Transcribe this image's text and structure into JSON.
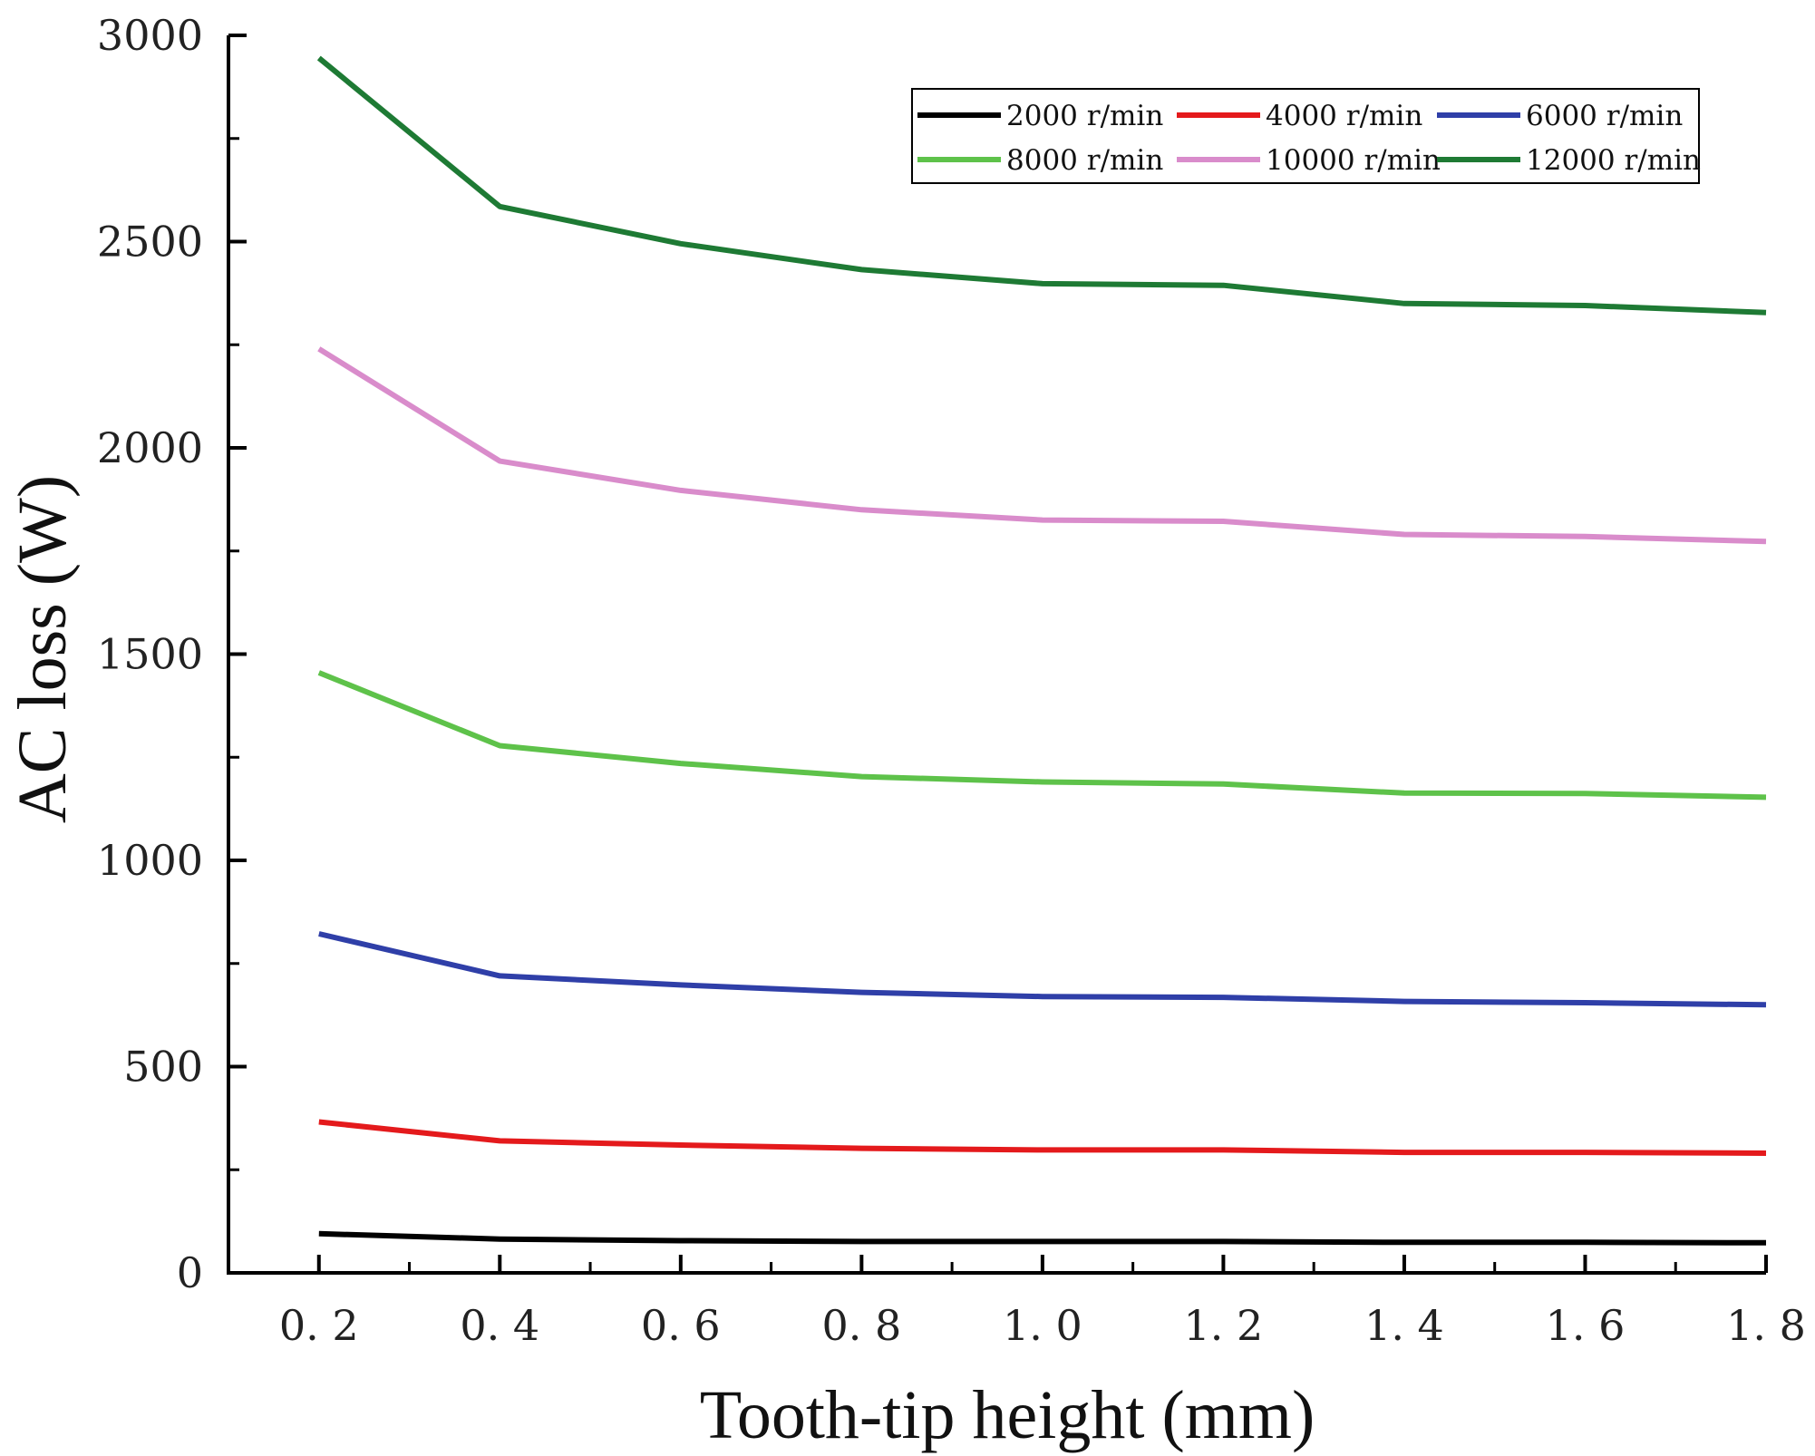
{
  "chart_data": {
    "type": "line",
    "title": "",
    "xlabel": "Tooth-tip height (mm)",
    "ylabel": "AC loss (W)",
    "x": [
      0.2,
      0.4,
      0.6,
      0.8,
      1.0,
      1.2,
      1.4,
      1.6,
      1.8
    ],
    "x_tick_labels": [
      "0. 2",
      "0. 4",
      "0. 6",
      "0. 8",
      "1. 0",
      "1. 2",
      "1. 4",
      "1. 6",
      "1. 8"
    ],
    "xlim": [
      0.1,
      1.8
    ],
    "ylim": [
      0,
      3000
    ],
    "y_ticks": [
      0,
      500,
      1000,
      1500,
      2000,
      2500,
      3000
    ],
    "y_tick_labels": [
      "0",
      "500",
      "1000",
      "1500",
      "2000",
      "2500",
      "3000"
    ],
    "grid": false,
    "legend_position": "top-right",
    "series": [
      {
        "name": "2000 r/min",
        "color": "#000000",
        "values": [
          95,
          82,
          78,
          76,
          76,
          76,
          74,
          74,
          73
        ]
      },
      {
        "name": "4000 r/min",
        "color": "#e41a1c",
        "values": [
          366,
          320,
          310,
          302,
          298,
          298,
          292,
          292,
          290
        ]
      },
      {
        "name": "6000 r/min",
        "color": "#2f3fa8",
        "values": [
          822,
          720,
          698,
          680,
          670,
          668,
          658,
          655,
          650
        ]
      },
      {
        "name": "8000 r/min",
        "color": "#5ec24a",
        "values": [
          1455,
          1278,
          1235,
          1203,
          1190,
          1185,
          1163,
          1162,
          1153
        ]
      },
      {
        "name": "10000 r/min",
        "color": "#d98ccb",
        "values": [
          2240,
          1968,
          1897,
          1850,
          1825,
          1822,
          1790,
          1785,
          1773
        ]
      },
      {
        "name": "12000 r/min",
        "color": "#1e7a34",
        "values": [
          2945,
          2585,
          2495,
          2432,
          2398,
          2394,
          2350,
          2345,
          2328
        ]
      }
    ]
  }
}
